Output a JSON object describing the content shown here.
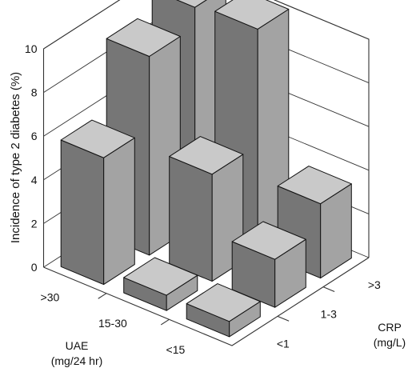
{
  "chart_data": {
    "type": "bar3d",
    "ylabel": "Incidence of type 2 diabetes (%)",
    "y_ticks": [
      "0",
      "2",
      "4",
      "6",
      "8",
      "10"
    ],
    "ylim": [
      0,
      10
    ],
    "uae_axis": {
      "title_line1": "UAE",
      "title_line2": "(mg/24 hr)",
      "categories": [
        ">30",
        "15-30",
        "<15"
      ]
    },
    "crp_axis": {
      "title_line1": "CRP",
      "title_line2": "(mg/L)",
      "categories": [
        "<1",
        "1-3",
        ">3"
      ]
    },
    "bars": [
      {
        "uae": ">30",
        "crp": "<1",
        "value": 5.8
      },
      {
        "uae": ">30",
        "crp": "1-3",
        "value": 9.1
      },
      {
        "uae": ">30",
        "crp": ">3",
        "value": 10.0
      },
      {
        "uae": "15-30",
        "crp": "<1",
        "value": 0.7
      },
      {
        "uae": "15-30",
        "crp": "1-3",
        "value": 4.9
      },
      {
        "uae": "15-30",
        "crp": ">3",
        "value": 10.2
      },
      {
        "uae": "<15",
        "crp": "<1",
        "value": 0.7
      },
      {
        "uae": "<15",
        "crp": "1-3",
        "value": 2.2
      },
      {
        "uae": "<15",
        "crp": ">3",
        "value": 3.4
      }
    ],
    "colors": {
      "front": "#a3a3a3",
      "side": "#767676",
      "top": "#c9c9c9",
      "grid": "#333333"
    }
  }
}
